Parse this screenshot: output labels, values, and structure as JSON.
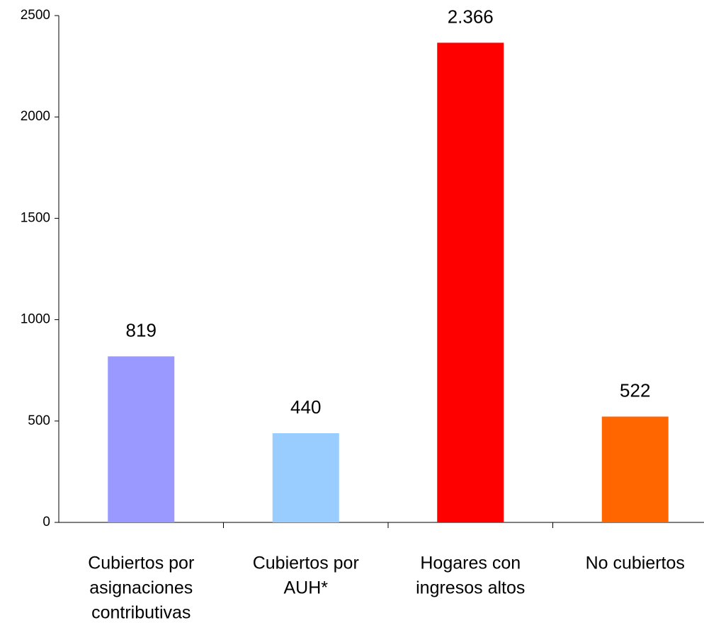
{
  "chart_data": {
    "type": "bar",
    "categories": [
      [
        "Cubiertos por",
        "asignaciones",
        "contributivas"
      ],
      [
        "Cubiertos por",
        "AUH*"
      ],
      [
        "Hogares con",
        "ingresos altos"
      ],
      [
        "No cubiertos"
      ]
    ],
    "values": [
      819,
      440,
      2366,
      522
    ],
    "value_labels": [
      "819",
      "440",
      "2.366",
      "522"
    ],
    "colors": [
      "#9999ff",
      "#99ccff",
      "#ff0000",
      "#ff6600"
    ],
    "ylim": [
      0,
      2500
    ],
    "yticks": [
      0,
      500,
      1000,
      1500,
      2000,
      2500
    ],
    "grid": false
  }
}
